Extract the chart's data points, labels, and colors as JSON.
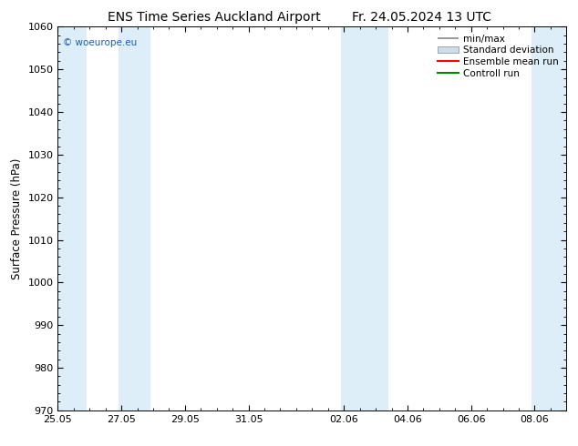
{
  "title": "ENS Time Series Auckland Airport",
  "title_right": "Fr. 24.05.2024 13 UTC",
  "ylabel": "Surface Pressure (hPa)",
  "ylim": [
    970,
    1060
  ],
  "yticks": [
    970,
    980,
    990,
    1000,
    1010,
    1020,
    1030,
    1040,
    1050,
    1060
  ],
  "xlim": [
    0,
    16.0
  ],
  "xtick_labels": [
    "25.05",
    "27.05",
    "29.05",
    "31.05",
    "02.06",
    "04.06",
    "06.06",
    "08.06"
  ],
  "xtick_positions": [
    0,
    2,
    4,
    6,
    9,
    11,
    13,
    15
  ],
  "weekend_bands": [
    {
      "start": 0.0,
      "end": 0.9
    },
    {
      "start": 1.9,
      "end": 2.9
    },
    {
      "start": 8.9,
      "end": 9.5
    },
    {
      "start": 9.5,
      "end": 10.4
    },
    {
      "start": 14.9,
      "end": 16.0
    }
  ],
  "band_color": "#ddeef8",
  "background_color": "#ffffff",
  "watermark": "© woeurope.eu",
  "watermark_color": "#1a5faa",
  "legend_items": [
    "min/max",
    "Standard deviation",
    "Ensemble mean run",
    "Controll run"
  ],
  "legend_line_colors": [
    "#888888",
    "#aaaaaa",
    "#ff0000",
    "#008800"
  ],
  "title_fontsize": 10,
  "tick_fontsize": 8,
  "ylabel_fontsize": 8.5
}
